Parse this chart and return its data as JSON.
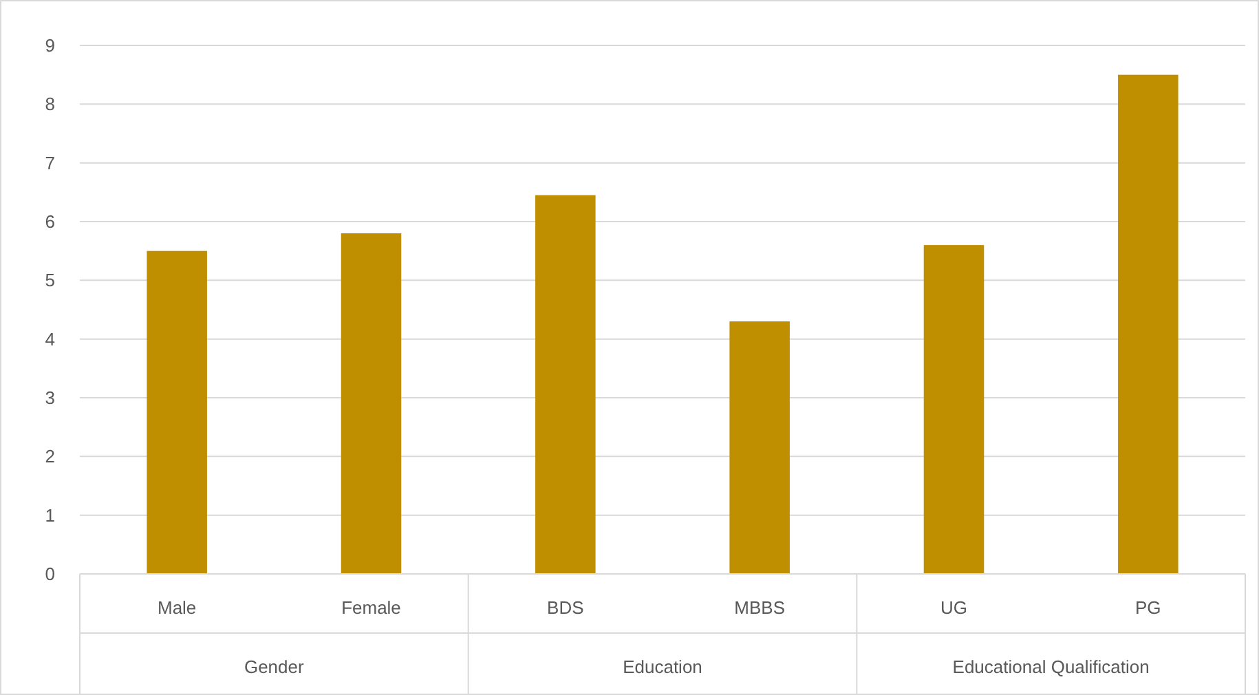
{
  "chart_data": {
    "type": "bar",
    "categories": [
      "Male",
      "Female",
      "BDS",
      "MBBS",
      "UG",
      "PG"
    ],
    "values": [
      5.5,
      5.8,
      6.45,
      4.3,
      5.6,
      8.5
    ],
    "color": "#bf8f00",
    "ylim": [
      0,
      9
    ],
    "yticks": [
      0,
      1,
      2,
      3,
      4,
      5,
      6,
      7,
      8,
      9
    ],
    "grid": "y",
    "annotations": [
      "Gender",
      "Education",
      "Educational Qualification"
    ]
  }
}
